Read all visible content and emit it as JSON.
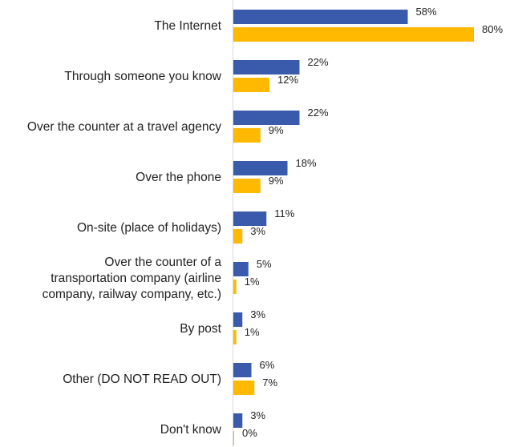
{
  "chart_data": {
    "type": "bar",
    "orientation": "horizontal",
    "categories": [
      "The Internet",
      "Through someone you know",
      "Over the counter at a travel agency",
      "Over the phone",
      "On-site (place of holidays)",
      "Over the counter of a transportation company (airline company, railway company, etc.)",
      "By post",
      "Other (DO NOT READ OUT)",
      "Don't know"
    ],
    "category_lines": [
      [
        "The Internet"
      ],
      [
        "Through someone you know"
      ],
      [
        "Over the counter at a travel agency"
      ],
      [
        "Over the phone"
      ],
      [
        "On-site (place of holidays)"
      ],
      [
        "Over the counter of a",
        "transportation company (airline",
        "company, railway company, etc.)"
      ],
      [
        "By post"
      ],
      [
        "Other (DO NOT READ OUT)"
      ],
      [
        "Don't know"
      ]
    ],
    "series": [
      {
        "color": "#3a5aab",
        "values": [
          58,
          22,
          22,
          18,
          11,
          5,
          3,
          6,
          3
        ],
        "labels": [
          "58%",
          "22%",
          "22%",
          "18%",
          "11%",
          "5%",
          "3%",
          "6%",
          "3%"
        ]
      },
      {
        "color": "#ffb900",
        "values": [
          80,
          12,
          9,
          9,
          3,
          1,
          1,
          7,
          0
        ],
        "labels": [
          "80%",
          "12%",
          "9%",
          "9%",
          "3%",
          "1%",
          "1%",
          "7%",
          "0%"
        ]
      }
    ],
    "xlim": [
      0,
      100
    ],
    "grid": false,
    "legend": "none"
  }
}
